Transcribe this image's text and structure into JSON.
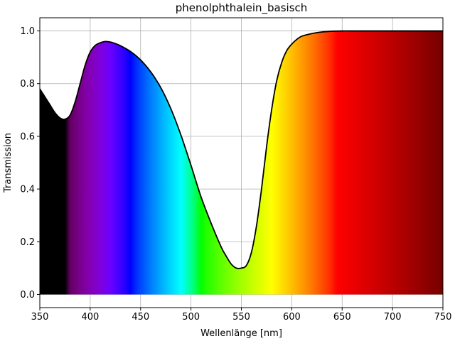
{
  "chart_data": {
    "type": "area",
    "title": "phenolphthalein_basisch",
    "xlabel": "Wellenlänge [nm]",
    "ylabel": "Transmission",
    "xlim": [
      350,
      750
    ],
    "ylim": [
      -0.05,
      1.05
    ],
    "xticks": [
      350,
      400,
      450,
      500,
      550,
      600,
      650,
      700,
      750
    ],
    "yticks": [
      0.0,
      0.2,
      0.4,
      0.6,
      0.8,
      1.0
    ],
    "xtick_labels": [
      "350",
      "400",
      "450",
      "500",
      "550",
      "600",
      "650",
      "700",
      "750"
    ],
    "ytick_labels": [
      "0.0",
      "0.2",
      "0.4",
      "0.6",
      "0.8",
      "1.0"
    ],
    "grid": true,
    "line_color": "#000000",
    "fill": "visible-spectrum",
    "series": [
      {
        "x": [
          350,
          355,
          360,
          365,
          370,
          375,
          380,
          385,
          390,
          395,
          400,
          405,
          410,
          415,
          420,
          425,
          430,
          440,
          450,
          460,
          470,
          480,
          490,
          500,
          510,
          520,
          530,
          535,
          540,
          545,
          550,
          555,
          560,
          565,
          570,
          575,
          580,
          585,
          590,
          595,
          600,
          605,
          610,
          620,
          630,
          640,
          650,
          660,
          700,
          750
        ],
        "y": [
          0.78,
          0.75,
          0.72,
          0.69,
          0.67,
          0.665,
          0.68,
          0.73,
          0.8,
          0.87,
          0.92,
          0.945,
          0.955,
          0.96,
          0.958,
          0.952,
          0.944,
          0.922,
          0.89,
          0.845,
          0.785,
          0.705,
          0.605,
          0.49,
          0.37,
          0.27,
          0.18,
          0.145,
          0.115,
          0.1,
          0.1,
          0.11,
          0.16,
          0.26,
          0.4,
          0.56,
          0.7,
          0.81,
          0.88,
          0.925,
          0.95,
          0.968,
          0.98,
          0.99,
          0.996,
          0.999,
          1.0,
          1.0,
          1.0,
          1.0
        ]
      }
    ]
  }
}
